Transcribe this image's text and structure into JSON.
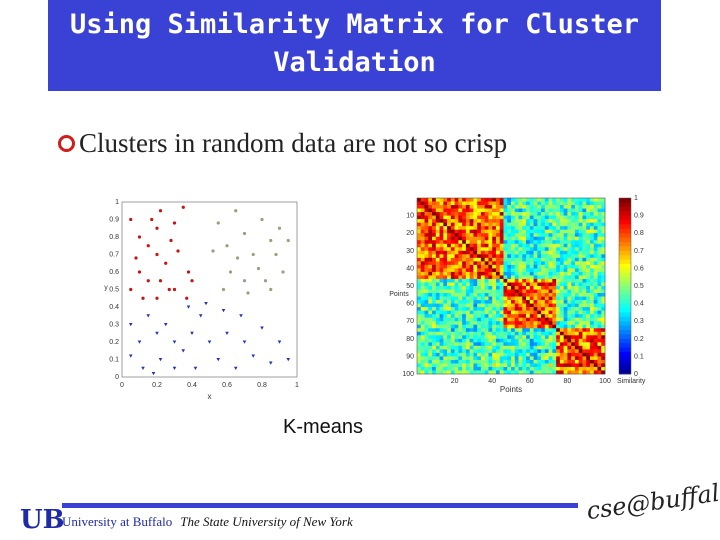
{
  "slide": {
    "title": "Using Similarity Matrix for Cluster Validation",
    "bullet": "Clusters in random data are not so crisp",
    "caption": "K-means"
  },
  "footer": {
    "university": "University at Buffalo",
    "suny": "The State University of New York",
    "logo_text": "cse@buffalo",
    "ub_logo": "UB"
  },
  "colors": {
    "title_bg": "#3a42d6",
    "bullet": "#d21b1b",
    "footer": "#1f2aa8"
  },
  "chart_data": [
    {
      "type": "scatter",
      "title": "",
      "xlabel": "x",
      "ylabel": "y",
      "xlim": [
        0,
        1
      ],
      "ylim": [
        0,
        1
      ],
      "xticks": [
        "0",
        "0.2",
        "0.4",
        "0.6",
        "0.8",
        "1"
      ],
      "yticks": [
        "0",
        "0.1",
        "0.2",
        "0.3",
        "0.4",
        "0.5",
        "0.6",
        "0.7",
        "0.8",
        "0.9",
        "1"
      ],
      "series": [
        {
          "color": "#cc1111",
          "marker": "dot",
          "points": [
            [
              0.05,
              0.9
            ],
            [
              0.1,
              0.8
            ],
            [
              0.15,
              0.75
            ],
            [
              0.17,
              0.9
            ],
            [
              0.2,
              0.85
            ],
            [
              0.22,
              0.95
            ],
            [
              0.2,
              0.7
            ],
            [
              0.25,
              0.65
            ],
            [
              0.3,
              0.88
            ],
            [
              0.32,
              0.72
            ],
            [
              0.35,
              0.97
            ],
            [
              0.38,
              0.6
            ],
            [
              0.1,
              0.6
            ],
            [
              0.15,
              0.55
            ],
            [
              0.22,
              0.55
            ],
            [
              0.27,
              0.5
            ],
            [
              0.05,
              0.5
            ],
            [
              0.12,
              0.45
            ],
            [
              0.2,
              0.45
            ],
            [
              0.3,
              0.5
            ],
            [
              0.37,
              0.45
            ],
            [
              0.08,
              0.68
            ],
            [
              0.28,
              0.78
            ],
            [
              0.4,
              0.55
            ]
          ]
        },
        {
          "color": "#9aa07a",
          "marker": "dot",
          "points": [
            [
              0.55,
              0.88
            ],
            [
              0.6,
              0.75
            ],
            [
              0.65,
              0.95
            ],
            [
              0.7,
              0.82
            ],
            [
              0.75,
              0.7
            ],
            [
              0.8,
              0.9
            ],
            [
              0.85,
              0.78
            ],
            [
              0.9,
              0.85
            ],
            [
              0.62,
              0.6
            ],
            [
              0.7,
              0.55
            ],
            [
              0.78,
              0.62
            ],
            [
              0.85,
              0.5
            ],
            [
              0.92,
              0.6
            ],
            [
              0.58,
              0.5
            ],
            [
              0.66,
              0.68
            ],
            [
              0.88,
              0.7
            ],
            [
              0.95,
              0.78
            ],
            [
              0.72,
              0.48
            ],
            [
              0.52,
              0.72
            ],
            [
              0.82,
              0.55
            ]
          ]
        },
        {
          "color": "#2233bb",
          "marker": "triangle",
          "points": [
            [
              0.05,
              0.3
            ],
            [
              0.1,
              0.2
            ],
            [
              0.15,
              0.35
            ],
            [
              0.2,
              0.25
            ],
            [
              0.22,
              0.1
            ],
            [
              0.25,
              0.3
            ],
            [
              0.3,
              0.2
            ],
            [
              0.35,
              0.15
            ],
            [
              0.4,
              0.25
            ],
            [
              0.42,
              0.05
            ],
            [
              0.45,
              0.35
            ],
            [
              0.5,
              0.2
            ],
            [
              0.55,
              0.1
            ],
            [
              0.6,
              0.25
            ],
            [
              0.65,
              0.05
            ],
            [
              0.7,
              0.2
            ],
            [
              0.75,
              0.12
            ],
            [
              0.8,
              0.28
            ],
            [
              0.85,
              0.08
            ],
            [
              0.9,
              0.2
            ],
            [
              0.95,
              0.1
            ],
            [
              0.12,
              0.05
            ],
            [
              0.3,
              0.05
            ],
            [
              0.48,
              0.42
            ],
            [
              0.38,
              0.4
            ],
            [
              0.05,
              0.12
            ],
            [
              0.18,
              0.02
            ],
            [
              0.68,
              0.35
            ],
            [
              0.58,
              0.38
            ]
          ]
        }
      ]
    },
    {
      "type": "heatmap",
      "title": "",
      "xlabel": "Points",
      "ylabel": "Points",
      "colorbar_label": "Similarity",
      "xlim": [
        0,
        100
      ],
      "ylim": [
        0,
        100
      ],
      "xticks": [
        "20",
        "40",
        "60",
        "80",
        "100"
      ],
      "yticks": [
        "10",
        "20",
        "30",
        "40",
        "50",
        "60",
        "70",
        "80",
        "90",
        "100"
      ],
      "colorbar_ticks": [
        "0",
        "0.1",
        "0.2",
        "0.3",
        "0.4",
        "0.5",
        "0.6",
        "0.7",
        "0.8",
        "0.9",
        "1"
      ],
      "cluster_boundaries": [
        0,
        47,
        75,
        100
      ]
    }
  ]
}
